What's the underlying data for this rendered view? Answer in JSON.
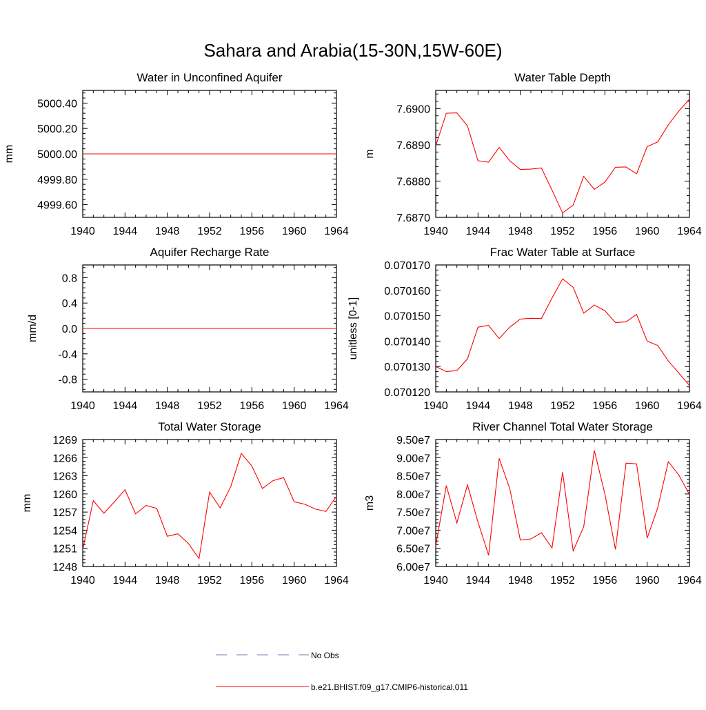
{
  "figure": {
    "title": "Sahara and Arabia(15-30N,15W-60E)"
  },
  "colors": {
    "model_line": "#ff0000",
    "obs_line": "#6b7fb8",
    "axes": "#000000"
  },
  "legend": {
    "entries": [
      {
        "label": "No Obs",
        "style": "dashed",
        "color": "#6b7fb8"
      },
      {
        "label": "b.e21.BHIST.f09_g17.CMIP6-historical.011",
        "style": "solid",
        "color": "#ff0000"
      }
    ]
  },
  "chart_data": [
    {
      "type": "line",
      "title": "Water in Unconfined Aquifer",
      "ylabel": "mm",
      "xlim": [
        1940,
        1964
      ],
      "ylim": [
        4999.5,
        5000.5
      ],
      "xticks": [
        1940,
        1944,
        1948,
        1952,
        1956,
        1960,
        1964
      ],
      "xtick_labels": [
        "1940",
        "1944",
        "1948",
        "1952",
        "1956",
        "1960",
        "1964"
      ],
      "yticks": [
        4999.6,
        4999.8,
        5000.0,
        5000.2,
        5000.4
      ],
      "ytick_labels": [
        "4999.60",
        "4999.80",
        "5000.00",
        "5000.20",
        "5000.40"
      ],
      "series": [
        {
          "name": "b.e21.BHIST.f09_g17.CMIP6-historical.011",
          "x": [
            1940,
            1941,
            1942,
            1943,
            1944,
            1945,
            1946,
            1947,
            1948,
            1949,
            1950,
            1951,
            1952,
            1953,
            1954,
            1955,
            1956,
            1957,
            1958,
            1959,
            1960,
            1961,
            1962,
            1963,
            1964
          ],
          "y": [
            5000,
            5000,
            5000,
            5000,
            5000,
            5000,
            5000,
            5000,
            5000,
            5000,
            5000,
            5000,
            5000,
            5000,
            5000,
            5000,
            5000,
            5000,
            5000,
            5000,
            5000,
            5000,
            5000,
            5000,
            5000
          ]
        }
      ]
    },
    {
      "type": "line",
      "title": "Water Table Depth",
      "ylabel": "m",
      "xlim": [
        1940,
        1964
      ],
      "ylim": [
        7.687,
        7.6905
      ],
      "xticks": [
        1940,
        1944,
        1948,
        1952,
        1956,
        1960,
        1964
      ],
      "xtick_labels": [
        "1940",
        "1944",
        "1948",
        "1952",
        "1956",
        "1960",
        "1964"
      ],
      "yticks": [
        7.687,
        7.688,
        7.689,
        7.69
      ],
      "ytick_labels": [
        "7.6870",
        "7.6880",
        "7.6890",
        "7.6900"
      ],
      "series": [
        {
          "name": "b.e21.BHIST.f09_g17.CMIP6-historical.011",
          "x": [
            1940,
            1941,
            1942,
            1943,
            1944,
            1945,
            1946,
            1947,
            1948,
            1949,
            1950,
            1951,
            1952,
            1953,
            1954,
            1955,
            1956,
            1957,
            1958,
            1959,
            1960,
            1961,
            1962,
            1963,
            1964
          ],
          "y": [
            7.68897,
            7.68987,
            7.68988,
            7.68952,
            7.68856,
            7.68852,
            7.68893,
            7.68856,
            7.68832,
            7.68833,
            7.68836,
            7.68775,
            7.68712,
            7.68734,
            7.68813,
            7.68777,
            7.68797,
            7.68838,
            7.68839,
            7.6882,
            7.68895,
            7.68908,
            7.68955,
            7.68993,
            7.69026
          ]
        }
      ]
    },
    {
      "type": "line",
      "title": "Aquifer Recharge Rate",
      "ylabel": "mm/d",
      "xlim": [
        1940,
        1964
      ],
      "ylim": [
        -1.0,
        1.0
      ],
      "xticks": [
        1940,
        1944,
        1948,
        1952,
        1956,
        1960,
        1964
      ],
      "xtick_labels": [
        "1940",
        "1944",
        "1948",
        "1952",
        "1956",
        "1960",
        "1964"
      ],
      "yticks": [
        -0.8,
        -0.4,
        0.0,
        0.4,
        0.8
      ],
      "ytick_labels": [
        "-0.8",
        "-0.4",
        "0.0",
        "0.4",
        "0.8"
      ],
      "series": [
        {
          "name": "b.e21.BHIST.f09_g17.CMIP6-historical.011",
          "x": [
            1940,
            1941,
            1942,
            1943,
            1944,
            1945,
            1946,
            1947,
            1948,
            1949,
            1950,
            1951,
            1952,
            1953,
            1954,
            1955,
            1956,
            1957,
            1958,
            1959,
            1960,
            1961,
            1962,
            1963,
            1964
          ],
          "y": [
            0,
            0,
            0,
            0,
            0,
            0,
            0,
            0,
            0,
            0,
            0,
            0,
            0,
            0,
            0,
            0,
            0,
            0,
            0,
            0,
            0,
            0,
            0,
            0,
            0
          ]
        }
      ]
    },
    {
      "type": "line",
      "title": "Frac Water Table at Surface",
      "ylabel": "unitless [0-1]",
      "xlim": [
        1940,
        1964
      ],
      "ylim": [
        0.07012,
        0.07017
      ],
      "xticks": [
        1940,
        1944,
        1948,
        1952,
        1956,
        1960,
        1964
      ],
      "xtick_labels": [
        "1940",
        "1944",
        "1948",
        "1952",
        "1956",
        "1960",
        "1964"
      ],
      "yticks": [
        0.07012,
        0.07013,
        0.07014,
        0.07015,
        0.07016,
        0.07017
      ],
      "ytick_labels": [
        "0.070120",
        "0.070130",
        "0.070140",
        "0.070150",
        "0.070160",
        "0.070170"
      ],
      "series": [
        {
          "name": "b.e21.BHIST.f09_g17.CMIP6-historical.011",
          "x": [
            1940,
            1941,
            1942,
            1943,
            1944,
            1945,
            1946,
            1947,
            1948,
            1949,
            1950,
            1951,
            1952,
            1953,
            1954,
            1955,
            1956,
            1957,
            1958,
            1959,
            1960,
            1961,
            1962,
            1963,
            1964
          ],
          "y": [
            0.07013,
            0.070128,
            0.0701284,
            0.070133,
            0.0701455,
            0.0701462,
            0.070141,
            0.0701455,
            0.0701487,
            0.070149,
            0.0701489,
            0.070157,
            0.0701645,
            0.0701612,
            0.070151,
            0.0701542,
            0.070152,
            0.0701473,
            0.0701476,
            0.0701505,
            0.07014,
            0.0701383,
            0.0701322,
            0.0701274,
            0.0701225
          ]
        }
      ]
    },
    {
      "type": "line",
      "title": "Total Water Storage",
      "ylabel": "mm",
      "xlim": [
        1940,
        1964
      ],
      "ylim": [
        1248,
        1269
      ],
      "xticks": [
        1940,
        1944,
        1948,
        1952,
        1956,
        1960,
        1964
      ],
      "xtick_labels": [
        "1940",
        "1944",
        "1948",
        "1952",
        "1956",
        "1960",
        "1964"
      ],
      "yticks": [
        1248,
        1251,
        1254,
        1257,
        1260,
        1263,
        1266,
        1269
      ],
      "ytick_labels": [
        "1248",
        "1251",
        "1254",
        "1257",
        "1260",
        "1263",
        "1266",
        "1269"
      ],
      "series": [
        {
          "name": "b.e21.BHIST.f09_g17.CMIP6-historical.011",
          "x": [
            1940,
            1941,
            1942,
            1943,
            1944,
            1945,
            1946,
            1947,
            1948,
            1949,
            1950,
            1951,
            1952,
            1953,
            1954,
            1955,
            1956,
            1957,
            1958,
            1959,
            1960,
            1961,
            1962,
            1963,
            1964
          ],
          "y": [
            1250.8,
            1258.9,
            1256.8,
            1258.7,
            1260.7,
            1256.7,
            1258.1,
            1257.6,
            1253.0,
            1253.4,
            1251.8,
            1249.3,
            1260.3,
            1257.7,
            1261.2,
            1266.7,
            1264.6,
            1260.9,
            1262.2,
            1262.7,
            1258.7,
            1258.3,
            1257.5,
            1257.1,
            1259.6
          ]
        }
      ]
    },
    {
      "type": "line",
      "title": "River Channel Total Water Storage",
      "ylabel": "m3",
      "xlim": [
        1940,
        1964
      ],
      "ylim": [
        60000000,
        95000000
      ],
      "xticks": [
        1940,
        1944,
        1948,
        1952,
        1956,
        1960,
        1964
      ],
      "xtick_labels": [
        "1940",
        "1944",
        "1948",
        "1952",
        "1956",
        "1960",
        "1964"
      ],
      "yticks": [
        60000000,
        65000000,
        70000000,
        75000000,
        80000000,
        85000000,
        90000000,
        95000000
      ],
      "ytick_labels": [
        "6.00e7",
        "6.50e7",
        "7.00e7",
        "7.50e7",
        "8.00e7",
        "8.50e7",
        "9.00e7",
        "9.50e7"
      ],
      "series": [
        {
          "name": "b.e21.BHIST.f09_g17.CMIP6-historical.011",
          "x": [
            1940,
            1941,
            1942,
            1943,
            1944,
            1945,
            1946,
            1947,
            1948,
            1949,
            1950,
            1951,
            1952,
            1953,
            1954,
            1955,
            1956,
            1957,
            1958,
            1959,
            1960,
            1961,
            1962,
            1963,
            1964
          ],
          "y": [
            65700000,
            82300000,
            72000000,
            82500000,
            72200000,
            63100000,
            89800000,
            81500000,
            67300000,
            67600000,
            69300000,
            65100000,
            86000000,
            64300000,
            71000000,
            92000000,
            80000000,
            64700000,
            88500000,
            88300000,
            67800000,
            76200000,
            88900000,
            85200000,
            79800000
          ]
        }
      ]
    }
  ]
}
